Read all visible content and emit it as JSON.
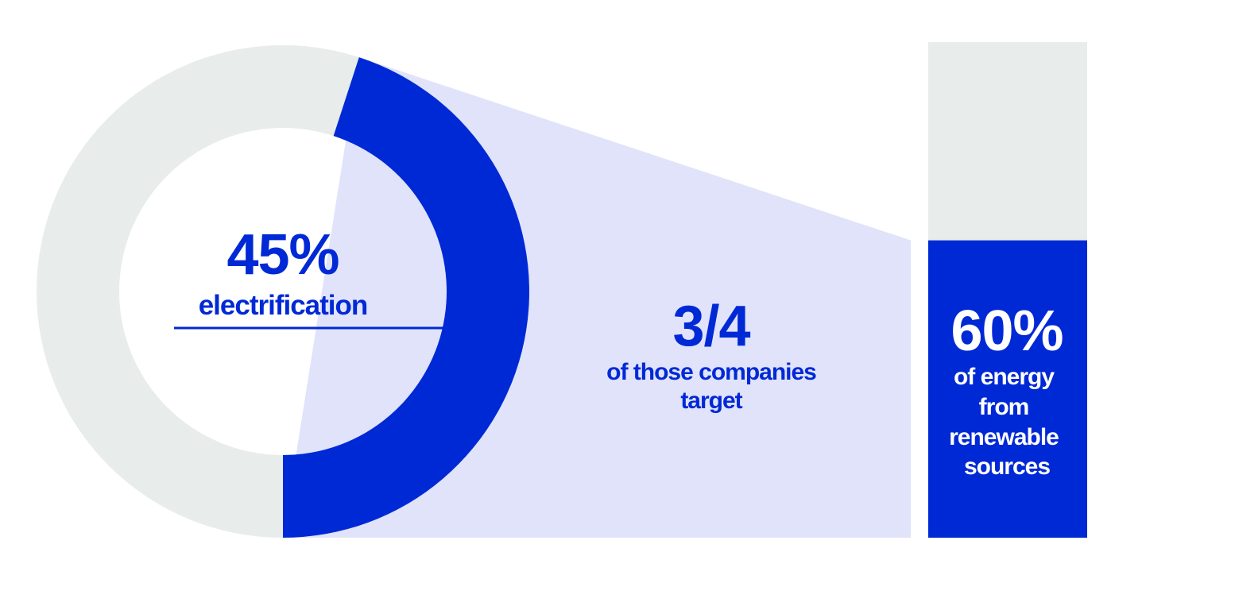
{
  "colors": {
    "accent": "#0029d6",
    "track": "#e8ecea",
    "funnel": "#e0e3fa",
    "inverse_text": "#ffffff",
    "background": "#ffffff"
  },
  "chart_data": [
    {
      "type": "pie",
      "variant": "donut",
      "slices": [
        {
          "value": 45,
          "highlighted": true
        },
        {
          "value": 55,
          "highlighted": false
        }
      ],
      "headline": "45%",
      "label": "electrification"
    },
    {
      "type": "funnel-callout",
      "value": 0.75,
      "headline": "3/4",
      "label_lines": [
        "of those companies",
        "target"
      ]
    },
    {
      "type": "bar",
      "orientation": "vertical",
      "stacked": true,
      "values": [
        60,
        40
      ],
      "highlighted_index": 0,
      "headline": "60%",
      "label_lines": [
        "of energy",
        "from",
        "renewable",
        "sources"
      ]
    }
  ]
}
